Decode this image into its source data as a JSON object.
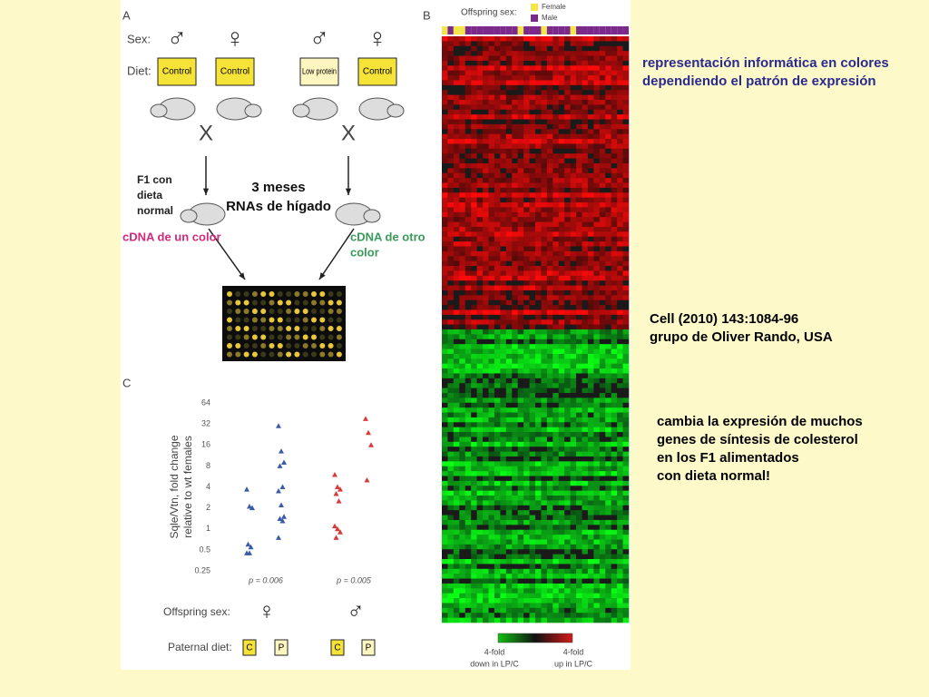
{
  "panel_a": {
    "letter": "A",
    "sex_label": "Sex:",
    "sexes": [
      "♂",
      "♀",
      "♂",
      "♀"
    ],
    "diet_label": "Diet:",
    "diets": [
      "Control",
      "Control",
      "Low protein",
      "Control"
    ],
    "cross": [
      "X",
      "X"
    ],
    "f1_note": [
      "F1 con",
      "dieta",
      "normal"
    ],
    "rna_note": [
      "3 meses",
      "RNAs de hígado"
    ],
    "cdna_left": "cDNA de un color",
    "cdna_right": [
      "cDNA de otro",
      "color"
    ]
  },
  "panel_b": {
    "letter": "B",
    "offspring_sex_label": "Offspring sex:",
    "legend": [
      {
        "name": "Female",
        "color": "#f2e64a"
      },
      {
        "name": "Male",
        "color": "#7b2a8c"
      }
    ],
    "colorbar_low": [
      "4-fold",
      "down in LP/C"
    ],
    "colorbar_high": [
      "4-fold",
      "up in LP/C"
    ]
  },
  "panel_c": {
    "letter": "C",
    "y_label": [
      "Sqle/Vtn, fold change",
      "relative to wt females"
    ],
    "log_scale": true,
    "ylim": [
      0.25,
      64
    ],
    "yticks": [
      64,
      32,
      16,
      8,
      4,
      2,
      1,
      0.5,
      0.25
    ],
    "groups": [
      {
        "diet": "C",
        "color": "#3b5ba8",
        "values": [
          3.7,
          2.1,
          2,
          0.6,
          0.55,
          0.45,
          0.45
        ]
      },
      {
        "diet": "P",
        "color": "#3b5ba8",
        "values": [
          30,
          13,
          9,
          8,
          4,
          3.5,
          2.2,
          1.5,
          1.4,
          1.3,
          0.75
        ]
      },
      {
        "diet": "C",
        "color": "#d83a3a",
        "values": [
          6,
          4,
          3.7,
          3.2,
          2.5,
          1.1,
          1,
          0.9,
          0.75
        ]
      },
      {
        "diet": "P",
        "color": "#d83a3a",
        "values": [
          38,
          24,
          16,
          5
        ]
      }
    ],
    "p_values": [
      "p = 0.006",
      "p = 0.005"
    ],
    "offspring_sex_label": "Offspring sex:",
    "offspring_sexes": [
      "♀",
      "♂"
    ],
    "paternal_diet_label": "Paternal diet:"
  },
  "notes": {
    "top": [
      "representación informática en colores",
      "dependiendo el patrón de expresión"
    ],
    "reference": [
      "Cell (2010) 143:1084-96",
      "grupo de Oliver Rando, USA"
    ],
    "finding": [
      "cambia la expresión de muchos",
      "genes de síntesis de colesterol",
      "en los F1 alimentados",
      "con dieta normal!"
    ]
  }
}
